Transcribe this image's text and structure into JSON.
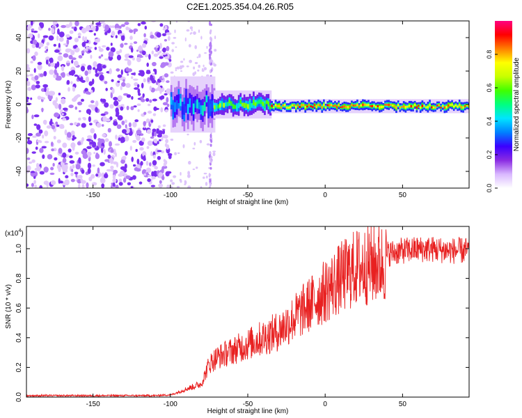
{
  "title": "C2E1.2025.354.04.26.R05",
  "chart_data": [
    {
      "type": "heatmap",
      "name": "spectrogram",
      "xlabel": "Height of straight line (km)",
      "ylabel": "Frequency (Hz)",
      "xlim": [
        -193,
        93
      ],
      "ylim": [
        -50,
        50
      ],
      "xticks": [
        -150,
        -100,
        -50,
        0,
        50
      ],
      "yticks": [
        -40,
        -20,
        0,
        20,
        40
      ],
      "colorbar": {
        "label": "Normalized spectral amplitude",
        "range": [
          0,
          1
        ],
        "ticks": [
          "0.0",
          "0.2",
          "0.4",
          "0.6",
          "0.8"
        ],
        "colormap": [
          "#ffffff",
          "#d9b8ff",
          "#8a2be2",
          "#3a00ff",
          "#0080ff",
          "#00e5ff",
          "#00ff80",
          "#40ff00",
          "#c8ff00",
          "#ffff00",
          "#ff8000",
          "#ff0000",
          "#ff0080"
        ]
      },
      "regions": [
        {
          "x_range": [
            -193,
            -100
          ],
          "description": "noise",
          "amplitude": 0.1
        },
        {
          "x_range": [
            -100,
            -72
          ],
          "freq_center": 0,
          "freq_halfwidth": 12,
          "amplitude": 0.35
        },
        {
          "x_range": [
            -72,
            -35
          ],
          "freq_center": 0,
          "freq_halfwidth": 6,
          "amplitude": 0.55
        },
        {
          "x_range": [
            -35,
            93
          ],
          "freq_center": -1,
          "freq_halfwidth": 3,
          "amplitude": 0.8
        }
      ]
    },
    {
      "type": "line",
      "name": "snr",
      "color": "#e82020",
      "xlabel": "Height of straight line (km)",
      "ylabel": "SNR (10 * v/v)",
      "multiplier_label": "(x10",
      "multiplier_exp": "4",
      "multiplier_close": ")",
      "xlim": [
        -193,
        93
      ],
      "ylim": [
        0,
        1.15
      ],
      "xticks": [
        -150,
        -100,
        -50,
        0,
        50
      ],
      "yticks": [
        "0.0",
        "0.2",
        "0.4",
        "0.6",
        "0.8",
        "1.0"
      ],
      "series": [
        {
          "name": "SNR envelope",
          "x": [
            -193,
            -150,
            -110,
            -100,
            -90,
            -80,
            -75,
            -70,
            -60,
            -50,
            -40,
            -30,
            -20,
            -10,
            0,
            10,
            20,
            30,
            40,
            50,
            60,
            70,
            80,
            93
          ],
          "y": [
            0.01,
            0.01,
            0.01,
            0.015,
            0.06,
            0.1,
            0.25,
            0.3,
            0.35,
            0.4,
            0.45,
            0.5,
            0.6,
            0.7,
            0.8,
            0.9,
            0.98,
            1.0,
            1.02,
            1.04,
            1.05,
            1.05,
            1.04,
            1.04
          ]
        }
      ]
    }
  ]
}
